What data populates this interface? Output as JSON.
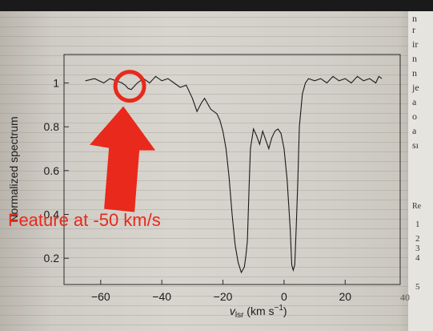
{
  "chart_data": {
    "type": "line",
    "ylabel": "Normalized spectrum",
    "xlabel_main": "v",
    "xlabel_sub": "lsr",
    "xlabel_units": " (km s",
    "xlabel_exp": "−1",
    "xlabel_close": ")",
    "xlim": [
      -72,
      38
    ],
    "ylim": [
      0.08,
      1.13
    ],
    "x_ticks": [
      -60,
      -40,
      -20,
      0,
      20
    ],
    "x_tick_labels": [
      "−60",
      "−40",
      "−20",
      "0",
      "20"
    ],
    "y_ticks": [
      0.2,
      0.4,
      0.6,
      0.8,
      1
    ],
    "y_tick_labels": [
      "0.2",
      "0.4",
      "0.6",
      "0.8",
      "1"
    ],
    "series": [
      {
        "x": [
          -65,
          -62,
          -59,
          -57,
          -55,
          -53,
          -52,
          -51,
          -50,
          -49,
          -48,
          -46,
          -44,
          -42,
          -40,
          -38,
          -36,
          -34,
          -32,
          -30,
          -28.5,
          -27,
          -26,
          -24,
          -22,
          -21,
          -20,
          -19,
          -18,
          -17,
          -16,
          -15,
          -14,
          -13,
          -12.5,
          -12,
          -11.5,
          -11,
          -10,
          -9,
          -8,
          -7,
          -6,
          -5,
          -4,
          -3,
          -2,
          -1,
          0,
          1,
          2,
          2.5,
          3,
          3.5,
          4,
          4.5,
          5,
          6,
          7,
          8,
          10,
          12,
          14,
          16,
          18,
          20,
          22,
          24,
          26,
          28,
          30,
          31,
          32
        ],
        "y": [
          1.01,
          1.02,
          1.0,
          1.02,
          1.01,
          1.0,
          0.99,
          0.975,
          0.97,
          0.985,
          1.0,
          1.02,
          1.0,
          1.03,
          1.01,
          1.02,
          1.0,
          0.98,
          0.99,
          0.93,
          0.87,
          0.91,
          0.93,
          0.88,
          0.86,
          0.83,
          0.78,
          0.7,
          0.57,
          0.4,
          0.26,
          0.18,
          0.135,
          0.16,
          0.21,
          0.28,
          0.5,
          0.7,
          0.79,
          0.76,
          0.72,
          0.78,
          0.74,
          0.7,
          0.75,
          0.78,
          0.79,
          0.77,
          0.7,
          0.56,
          0.34,
          0.17,
          0.145,
          0.17,
          0.35,
          0.55,
          0.8,
          0.95,
          1.0,
          1.02,
          1.01,
          1.02,
          1.0,
          1.03,
          1.01,
          1.02,
          1.0,
          1.03,
          1.01,
          1.02,
          1.0,
          1.03,
          1.02
        ]
      }
    ]
  },
  "annotation": {
    "text": "Feature at -50 km/s",
    "circle_center_x": -50.5,
    "circle_center_y": 0.985,
    "color": "#e8291b"
  },
  "right_column": {
    "r1": "n",
    "r2": "r",
    "r3": "ir",
    "r4": "n",
    "r5": "n",
    "r6": "je",
    "r7": "a",
    "r8": "o",
    "r9": "a",
    "r10": "sı",
    "r11": "Re",
    "r12": "1",
    "r13": "2",
    "r14": "3",
    "r15": "4",
    "r16": "5",
    "r17": "40"
  }
}
